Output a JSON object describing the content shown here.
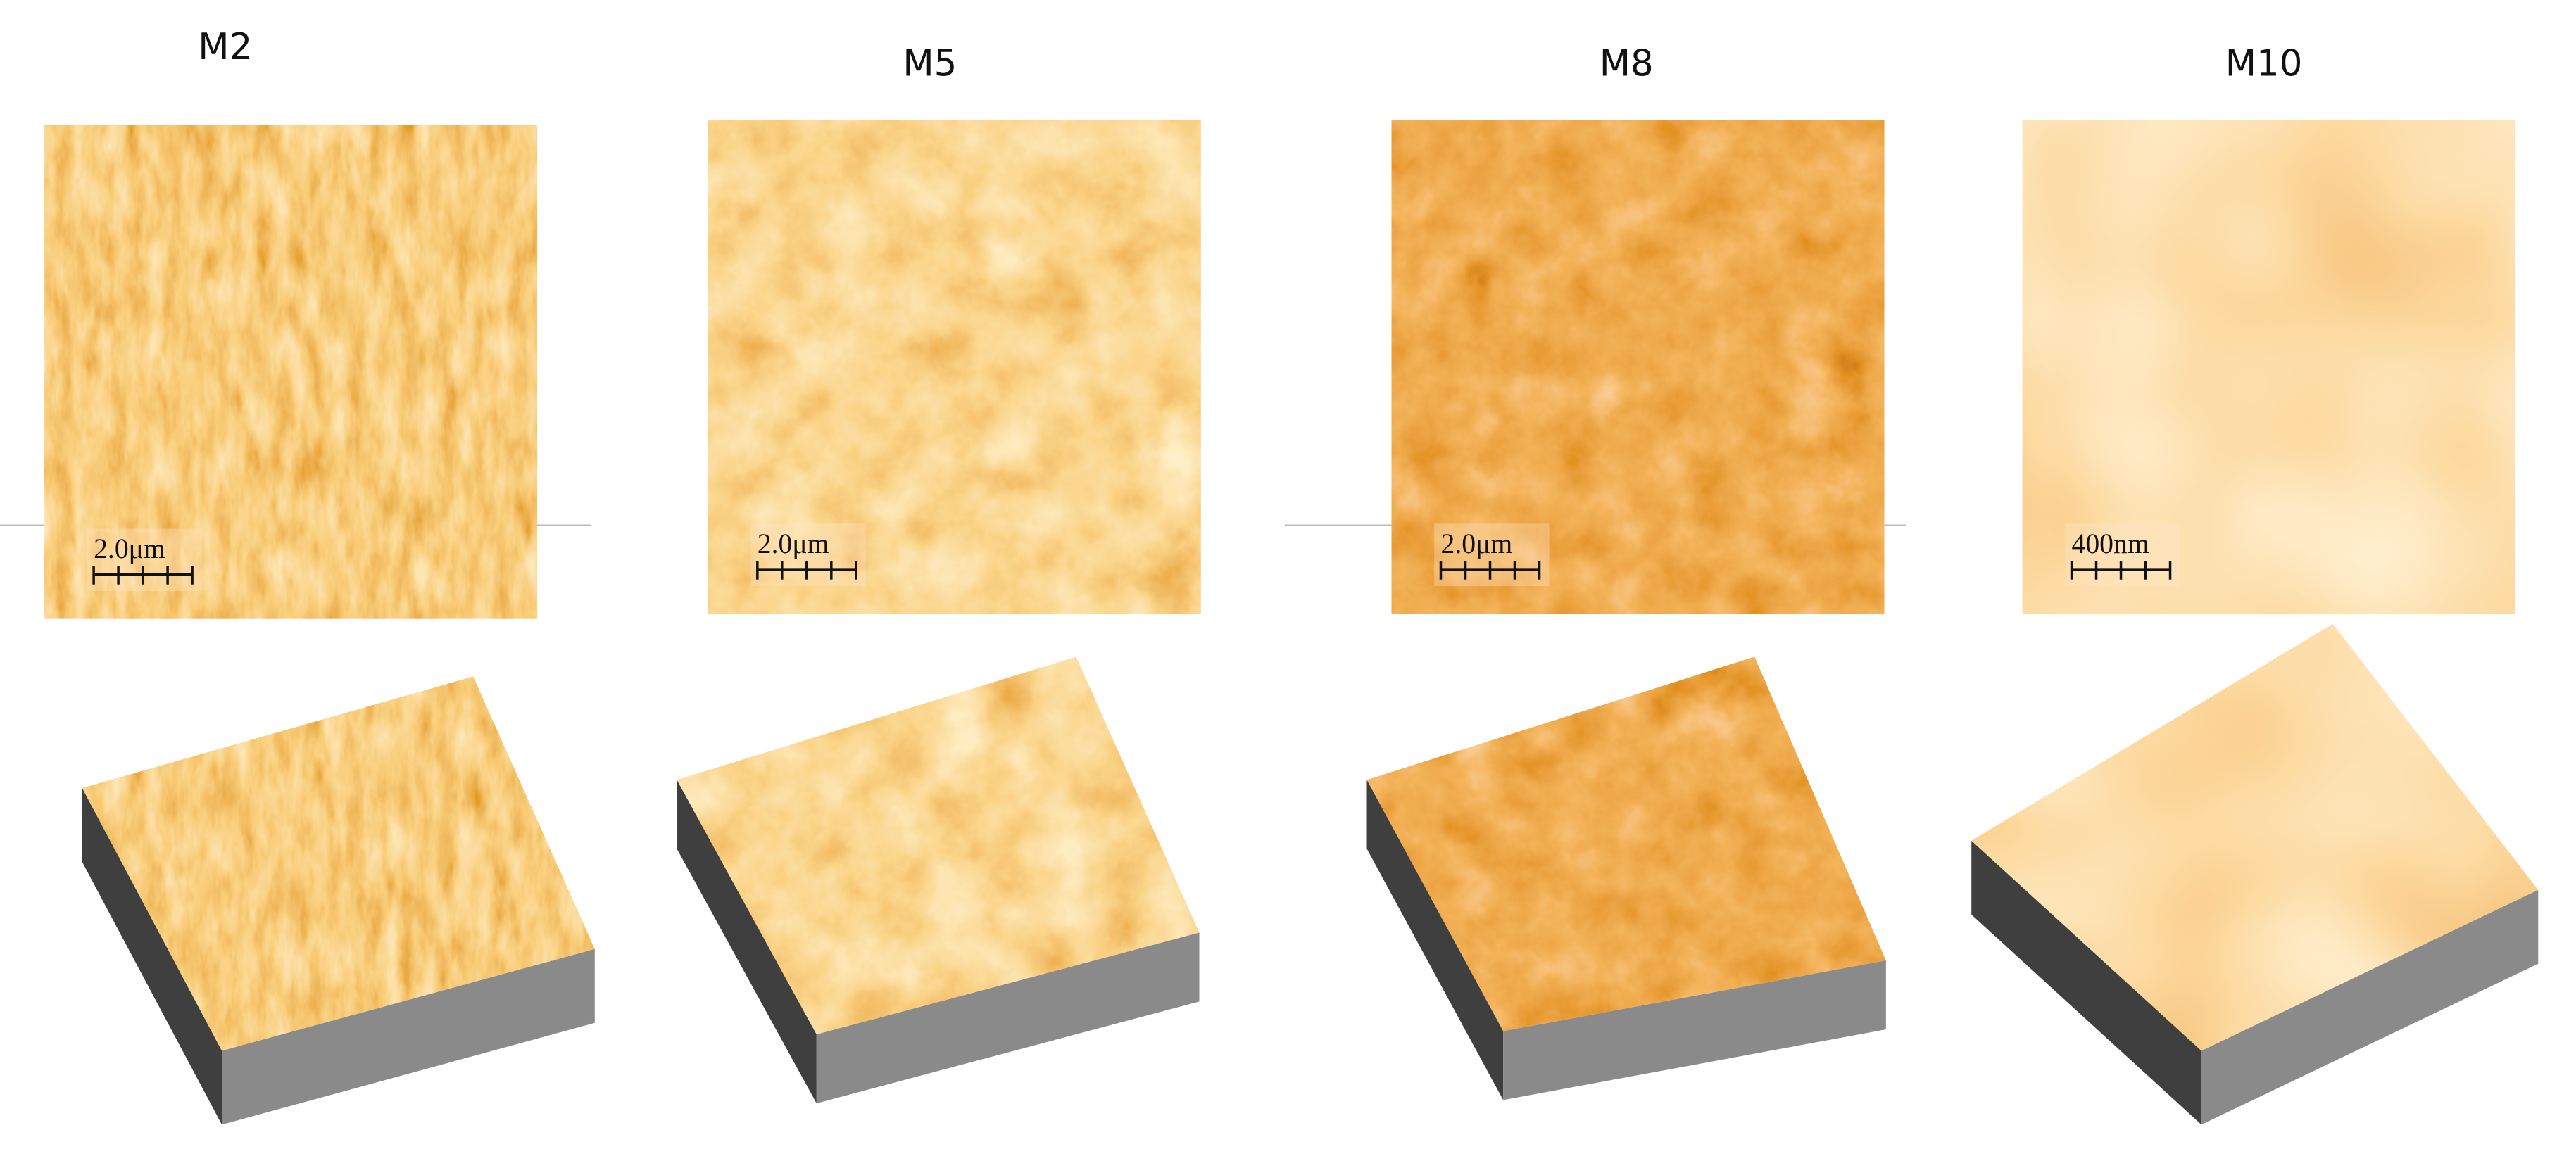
{
  "panels": [
    {
      "label": "M2",
      "scale_bar": "2.0μm"
    },
    {
      "label": "M5",
      "scale_bar": "2.0μm"
    },
    {
      "label": "M8",
      "scale_bar": "2.0μm"
    },
    {
      "label": "M10",
      "scale_bar": "400nm"
    }
  ]
}
